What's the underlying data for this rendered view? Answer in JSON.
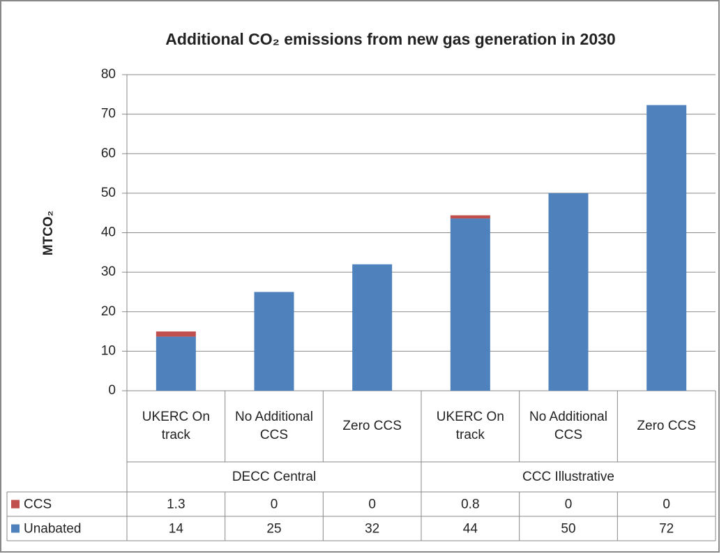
{
  "chart_data": {
    "type": "stacked_bar",
    "title": "Additional CO₂ emissions from new gas generation in 2030",
    "y_label": "MTCO₂",
    "categories": [
      "UKERC On track",
      "No Additional CCS",
      "Zero CCS",
      "UKERC On track",
      "No Additional CCS",
      "Zero CCS"
    ],
    "groups": [
      {
        "name": "DECC Central",
        "span": 3
      },
      {
        "name": "CCC Illustrative",
        "span": 3
      }
    ],
    "series": [
      {
        "name": "CCS",
        "color": "#c0504d",
        "values": [
          1.3,
          0,
          0,
          0.8,
          0,
          0
        ]
      },
      {
        "name": "Unabated",
        "color": "#4f81bd",
        "values": [
          13.7,
          25,
          32,
          43.6,
          50,
          72.3
        ],
        "value_labels": [
          "14",
          "25",
          "32",
          "44",
          "50",
          "72"
        ]
      }
    ],
    "ylim": [
      0,
      80
    ],
    "yticks": [
      0,
      10,
      20,
      30,
      40,
      50,
      60,
      70,
      80
    ],
    "grid": true,
    "data_table": true
  }
}
